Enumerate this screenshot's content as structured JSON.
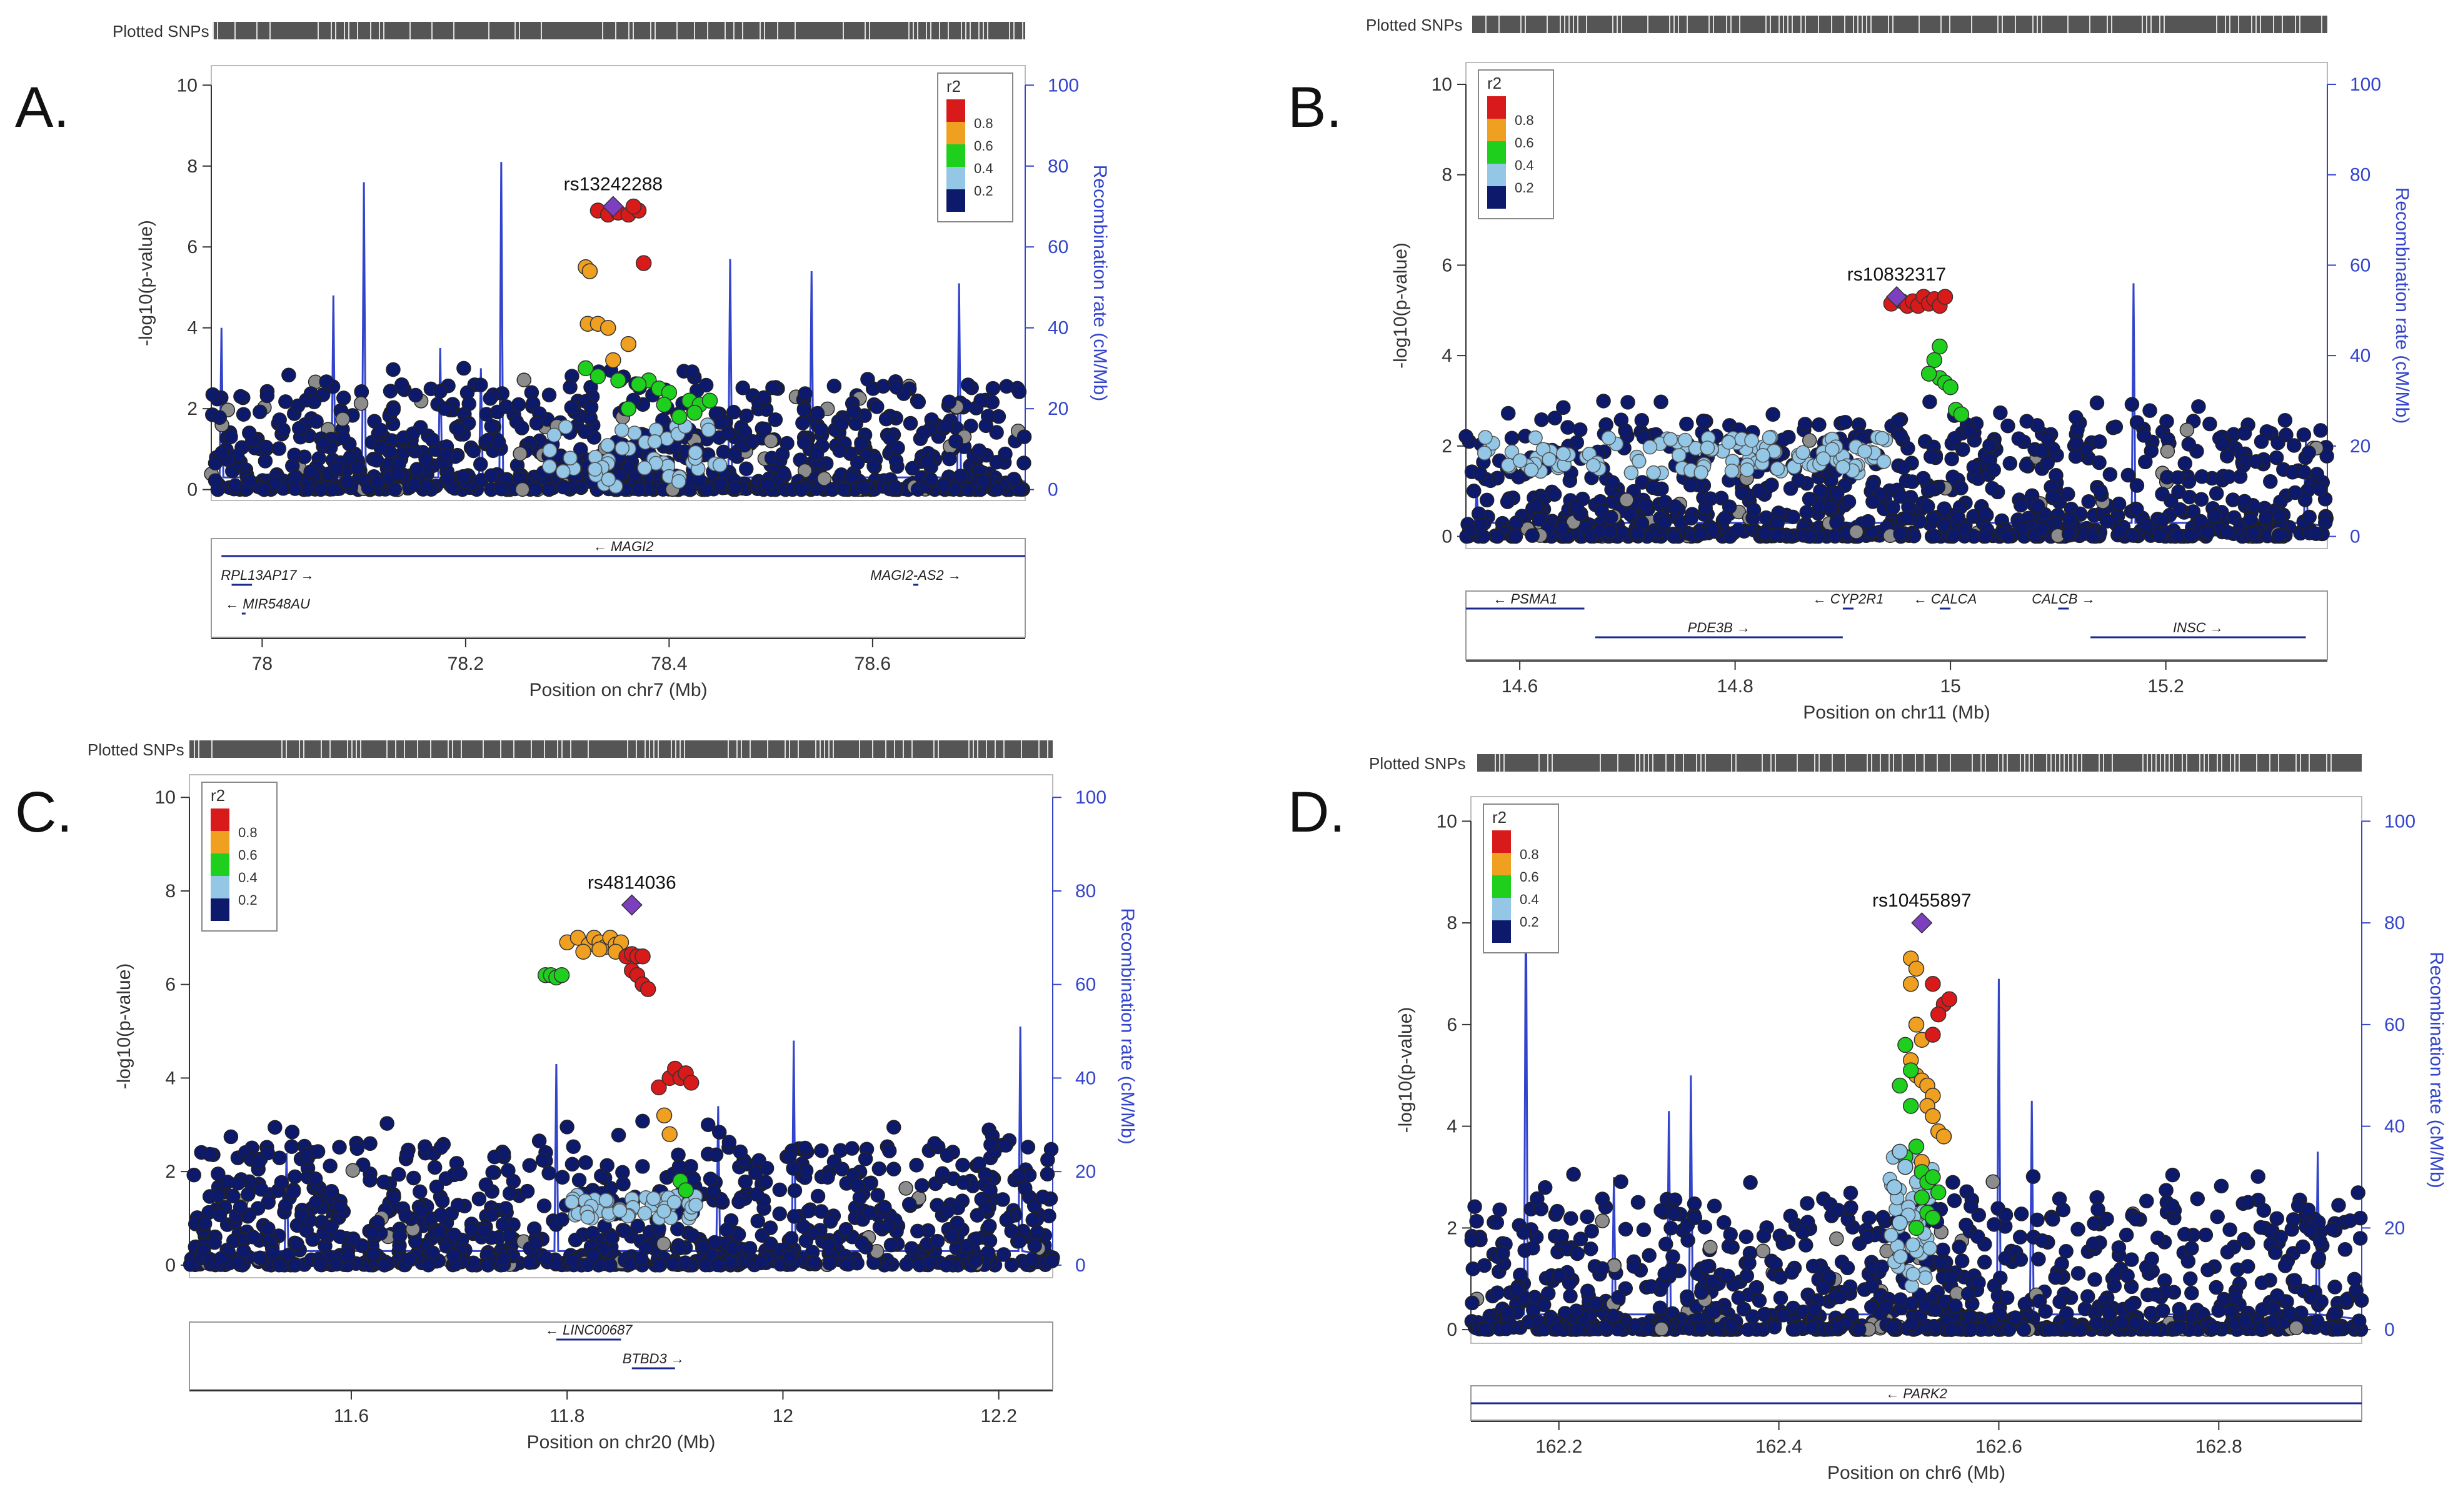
{
  "figure_title": "",
  "colors": {
    "recomb": "#3344cc",
    "navy": "#0d1a6b",
    "grey": "#8c8c8c",
    "lightblue": "#94c7e6",
    "green": "#1ecf1e",
    "orange": "#f0a020",
    "red": "#d81a1a",
    "purple": "#7c3fbf"
  },
  "common": {
    "plotted_snps_label": "Plotted SNPs",
    "y_label": "-log10(p-value)",
    "y2_label": "Recombination rate (cM/Mb)",
    "legend_title": "r2",
    "legend_ticks": [
      "0.8",
      "0.6",
      "0.4",
      "0.2"
    ],
    "y_ticks": [
      "0",
      "2",
      "4",
      "6",
      "8",
      "10"
    ],
    "y2_ticks": [
      "0",
      "20",
      "40",
      "60",
      "80",
      "100"
    ]
  },
  "chart_data": [
    {
      "type": "scatter",
      "panel": "A.",
      "xlabel": "Position on chr7 (Mb)",
      "xlim": [
        77.95,
        78.75
      ],
      "ylim": [
        0,
        10
      ],
      "y2lim": [
        0,
        100
      ],
      "x_ticks": [
        "78",
        "78.2",
        "78.4",
        "78.6"
      ],
      "x_tick_values": [
        78,
        78.2,
        78.4,
        78.6
      ],
      "lead_snp": {
        "name": "rs13242288",
        "x": 78.345,
        "y": 7.0
      },
      "legend_placement": "top-right",
      "recomb_peaks": [
        [
          77.96,
          40
        ],
        [
          78.07,
          48
        ],
        [
          78.1,
          76
        ],
        [
          78.175,
          35
        ],
        [
          78.215,
          30
        ],
        [
          78.235,
          81
        ],
        [
          78.46,
          57
        ],
        [
          78.54,
          54
        ],
        [
          78.685,
          51
        ]
      ],
      "clusters": [
        {
          "color": "red",
          "points": [
            [
              78.33,
              6.9
            ],
            [
              78.34,
              6.8
            ],
            [
              78.35,
              6.85
            ],
            [
              78.36,
              6.8
            ],
            [
              78.37,
              6.9
            ],
            [
              78.365,
              7.0
            ],
            [
              78.375,
              5.6
            ]
          ]
        },
        {
          "color": "orange",
          "points": [
            [
              78.318,
              5.5
            ],
            [
              78.322,
              5.4
            ],
            [
              78.32,
              4.1
            ],
            [
              78.33,
              4.1
            ],
            [
              78.345,
              3.2
            ],
            [
              78.36,
              3.6
            ],
            [
              78.34,
              4.0
            ]
          ]
        },
        {
          "color": "green",
          "points": [
            [
              78.318,
              3.0
            ],
            [
              78.33,
              2.8
            ],
            [
              78.35,
              2.7
            ],
            [
              78.38,
              2.7
            ],
            [
              78.39,
              2.5
            ],
            [
              78.4,
              2.4
            ],
            [
              78.42,
              2.2
            ],
            [
              78.43,
              2.1
            ],
            [
              78.44,
              2.2
            ],
            [
              78.41,
              1.8
            ],
            [
              78.36,
              2.0
            ],
            [
              78.395,
              2.1
            ],
            [
              78.37,
              2.6
            ],
            [
              78.425,
              1.9
            ]
          ]
        }
      ],
      "genes": [
        {
          "name": "← MAGI2",
          "row": 0,
          "start": 77.96,
          "end": 78.75
        },
        {
          "name": "RPL13AP17 →",
          "row": 1,
          "start": 77.97,
          "end": 77.99
        },
        {
          "name": "← MIR548AU",
          "row": 2,
          "start": 77.98,
          "end": 77.98
        },
        {
          "name": "MAGI2-AS2 →",
          "row": 1,
          "start": 78.64,
          "end": 78.645
        }
      ]
    },
    {
      "type": "scatter",
      "panel": "B.",
      "xlabel": "Position on chr11 (Mb)",
      "xlim": [
        14.55,
        15.35
      ],
      "ylim": [
        0,
        10
      ],
      "y2lim": [
        0,
        100
      ],
      "x_ticks": [
        "14.6",
        "14.8",
        "15",
        "15.2"
      ],
      "x_tick_values": [
        14.6,
        14.8,
        15.0,
        15.2
      ],
      "lead_snp": {
        "name": "rs10832317",
        "x": 14.95,
        "y": 5.3
      },
      "legend_placement": "top-left",
      "recomb_peaks": [
        [
          14.56,
          10
        ],
        [
          15.17,
          56
        ],
        [
          15.33,
          21
        ]
      ],
      "clusters": [
        {
          "color": "red",
          "points": [
            [
              14.955,
              5.2
            ],
            [
              14.96,
              5.1
            ],
            [
              14.965,
              5.2
            ],
            [
              14.97,
              5.1
            ],
            [
              14.975,
              5.3
            ],
            [
              14.98,
              5.15
            ],
            [
              14.985,
              5.25
            ],
            [
              14.99,
              5.1
            ],
            [
              14.945,
              5.15
            ],
            [
              14.995,
              5.3
            ]
          ]
        },
        {
          "color": "green",
          "points": [
            [
              14.99,
              4.2
            ],
            [
              14.985,
              3.9
            ],
            [
              14.99,
              3.5
            ],
            [
              14.995,
              3.4
            ],
            [
              15.0,
              3.3
            ],
            [
              15.005,
              2.8
            ],
            [
              15.01,
              2.7
            ],
            [
              14.98,
              3.6
            ]
          ]
        }
      ],
      "genes": [
        {
          "name": "← PSMA1",
          "row": 0,
          "start": 14.55,
          "end": 14.66
        },
        {
          "name": "PDE3B →",
          "row": 1,
          "start": 14.67,
          "end": 14.9
        },
        {
          "name": "← CYP2R1",
          "row": 0,
          "start": 14.9,
          "end": 14.91
        },
        {
          "name": "← CALCA",
          "row": 0,
          "start": 14.99,
          "end": 15.0
        },
        {
          "name": "CALCB →",
          "row": 0,
          "start": 15.1,
          "end": 15.11
        },
        {
          "name": "INSC →",
          "row": 1,
          "start": 15.13,
          "end": 15.33
        }
      ]
    },
    {
      "type": "scatter",
      "panel": "C.",
      "xlabel": "Position on chr20 (Mb)",
      "xlim": [
        11.45,
        12.25
      ],
      "ylim": [
        0,
        10
      ],
      "y2lim": [
        0,
        100
      ],
      "x_ticks": [
        "11.6",
        "11.8",
        "12",
        "12.2"
      ],
      "x_tick_values": [
        11.6,
        11.8,
        12.0,
        12.2
      ],
      "lead_snp": {
        "name": "rs4814036",
        "x": 11.86,
        "y": 7.7
      },
      "legend_placement": "top-left",
      "recomb_peaks": [
        [
          11.54,
          24
        ],
        [
          11.79,
          43
        ],
        [
          11.94,
          34
        ],
        [
          12.01,
          48
        ],
        [
          12.22,
          51
        ]
      ],
      "clusters": [
        {
          "color": "orange",
          "points": [
            [
              11.8,
              6.9
            ],
            [
              11.81,
              7.0
            ],
            [
              11.82,
              6.85
            ],
            [
              11.825,
              7.0
            ],
            [
              11.83,
              6.9
            ],
            [
              11.835,
              6.8
            ],
            [
              11.84,
              7.0
            ],
            [
              11.845,
              6.85
            ],
            [
              11.85,
              6.9
            ],
            [
              11.815,
              6.7
            ],
            [
              11.83,
              6.75
            ],
            [
              11.845,
              6.7
            ],
            [
              11.89,
              3.2
            ],
            [
              11.895,
              2.8
            ]
          ]
        },
        {
          "color": "red",
          "points": [
            [
              11.855,
              6.6
            ],
            [
              11.86,
              6.65
            ],
            [
              11.865,
              6.6
            ],
            [
              11.87,
              6.6
            ],
            [
              11.86,
              6.3
            ],
            [
              11.865,
              6.2
            ],
            [
              11.87,
              6.0
            ],
            [
              11.875,
              5.9
            ],
            [
              11.885,
              3.8
            ],
            [
              11.895,
              4.0
            ],
            [
              11.9,
              4.2
            ],
            [
              11.905,
              4.0
            ],
            [
              11.91,
              4.1
            ],
            [
              11.915,
              3.9
            ]
          ]
        },
        {
          "color": "green",
          "points": [
            [
              11.78,
              6.2
            ],
            [
              11.785,
              6.2
            ],
            [
              11.79,
              6.15
            ],
            [
              11.795,
              6.2
            ],
            [
              11.905,
              1.8
            ],
            [
              11.91,
              1.6
            ]
          ]
        }
      ],
      "genes": [
        {
          "name": "← LINC00687",
          "row": 0,
          "start": 11.79,
          "end": 11.85
        },
        {
          "name": "BTBD3 →",
          "row": 1,
          "start": 11.86,
          "end": 11.9
        }
      ]
    },
    {
      "type": "scatter",
      "panel": "D.",
      "xlabel": "Position on chr6 (Mb)",
      "xlim": [
        162.12,
        162.93
      ],
      "ylim": [
        0,
        10
      ],
      "y2lim": [
        0,
        100
      ],
      "x_ticks": [
        "162.2",
        "162.4",
        "162.6",
        "162.8"
      ],
      "x_tick_values": [
        162.2,
        162.4,
        162.6,
        162.8
      ],
      "lead_snp": {
        "name": "rs10455897",
        "x": 162.53,
        "y": 8.0
      },
      "legend_placement": "top-left",
      "recomb_peaks": [
        [
          162.17,
          90
        ],
        [
          162.25,
          30
        ],
        [
          162.3,
          43
        ],
        [
          162.32,
          50
        ],
        [
          162.6,
          69
        ],
        [
          162.63,
          45
        ],
        [
          162.89,
          35
        ]
      ],
      "clusters": [
        {
          "color": "orange",
          "points": [
            [
              162.52,
              7.3
            ],
            [
              162.525,
              7.1
            ],
            [
              162.52,
              6.8
            ],
            [
              162.525,
              6.0
            ],
            [
              162.53,
              5.7
            ],
            [
              162.52,
              5.3
            ],
            [
              162.525,
              5.0
            ],
            [
              162.53,
              4.9
            ],
            [
              162.535,
              4.8
            ],
            [
              162.54,
              4.6
            ],
            [
              162.535,
              4.4
            ],
            [
              162.54,
              4.2
            ],
            [
              162.545,
              3.9
            ],
            [
              162.55,
              3.8
            ],
            [
              162.53,
              3.3
            ]
          ]
        },
        {
          "color": "red",
          "points": [
            [
              162.54,
              6.8
            ],
            [
              162.55,
              6.4
            ],
            [
              162.545,
              6.2
            ],
            [
              162.555,
              6.5
            ],
            [
              162.54,
              5.8
            ]
          ]
        },
        {
          "color": "green",
          "points": [
            [
              162.515,
              5.6
            ],
            [
              162.52,
              5.1
            ],
            [
              162.51,
              4.8
            ],
            [
              162.52,
              4.4
            ],
            [
              162.525,
              3.6
            ],
            [
              162.53,
              3.1
            ],
            [
              162.535,
              2.9
            ],
            [
              162.54,
              3.0
            ],
            [
              162.53,
              2.6
            ],
            [
              162.535,
              2.3
            ],
            [
              162.54,
              2.2
            ],
            [
              162.525,
              2.0
            ],
            [
              162.545,
              2.7
            ],
            [
              162.515,
              3.4
            ]
          ]
        },
        {
          "color": "lightblue",
          "points": [
            [
              162.51,
              3.5
            ],
            [
              162.515,
              3.2
            ],
            [
              162.505,
              2.8
            ],
            [
              162.51,
              2.1
            ]
          ]
        }
      ],
      "genes": [
        {
          "name": "← PARK2",
          "row": 0,
          "start": 162.12,
          "end": 162.93
        }
      ]
    }
  ]
}
